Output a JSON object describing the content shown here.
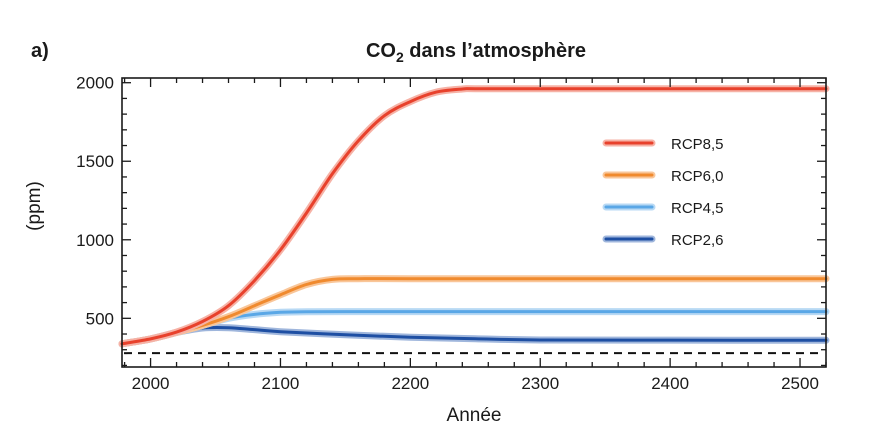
{
  "chart_data": {
    "type": "line",
    "panel_label": "a)",
    "title": "CO₂ dans l’atmosphère",
    "title_main": "CO",
    "title_sub": "2",
    "title_rest": " dans l’atmosphère",
    "xlabel": "Année",
    "ylabel": "(ppm)",
    "xlim": [
      1978,
      2520
    ],
    "ylim": [
      190,
      2030
    ],
    "x_ticks": [
      2000,
      2100,
      2200,
      2300,
      2400,
      2500
    ],
    "y_ticks": [
      500,
      1000,
      1500,
      2000
    ],
    "grid": false,
    "legend_position": "right",
    "baseline": {
      "value": 278,
      "style": "dashed"
    },
    "series": [
      {
        "name": "RCP8,5",
        "color": "#e8412c",
        "halo": "#f6b2a6",
        "points": [
          [
            1978,
            338
          ],
          [
            2000,
            369
          ],
          [
            2020,
            412
          ],
          [
            2040,
            480
          ],
          [
            2060,
            580
          ],
          [
            2080,
            740
          ],
          [
            2100,
            936
          ],
          [
            2120,
            1170
          ],
          [
            2140,
            1420
          ],
          [
            2160,
            1630
          ],
          [
            2180,
            1790
          ],
          [
            2200,
            1880
          ],
          [
            2220,
            1940
          ],
          [
            2240,
            1960
          ],
          [
            2250,
            1962
          ],
          [
            2300,
            1962
          ],
          [
            2400,
            1962
          ],
          [
            2520,
            1962
          ]
        ]
      },
      {
        "name": "RCP6,0",
        "color": "#f08a2e",
        "halo": "#f9c699",
        "points": [
          [
            1978,
            338
          ],
          [
            2000,
            369
          ],
          [
            2020,
            410
          ],
          [
            2040,
            455
          ],
          [
            2060,
            510
          ],
          [
            2080,
            580
          ],
          [
            2100,
            650
          ],
          [
            2120,
            715
          ],
          [
            2140,
            748
          ],
          [
            2160,
            752
          ],
          [
            2200,
            752
          ],
          [
            2300,
            752
          ],
          [
            2400,
            752
          ],
          [
            2520,
            752
          ]
        ]
      },
      {
        "name": "RCP4,5",
        "color": "#5aa7e6",
        "halo": "#b8d9f4",
        "points": [
          [
            1978,
            338
          ],
          [
            2000,
            369
          ],
          [
            2020,
            410
          ],
          [
            2040,
            455
          ],
          [
            2060,
            500
          ],
          [
            2080,
            525
          ],
          [
            2100,
            538
          ],
          [
            2120,
            542
          ],
          [
            2150,
            543
          ],
          [
            2200,
            543
          ],
          [
            2300,
            543
          ],
          [
            2400,
            543
          ],
          [
            2520,
            543
          ]
        ]
      },
      {
        "name": "RCP2,6",
        "color": "#1e4fa3",
        "halo": "#9fb6dc",
        "points": [
          [
            1978,
            338
          ],
          [
            2000,
            369
          ],
          [
            2020,
            410
          ],
          [
            2040,
            438
          ],
          [
            2060,
            440
          ],
          [
            2080,
            428
          ],
          [
            2100,
            415
          ],
          [
            2150,
            395
          ],
          [
            2200,
            380
          ],
          [
            2250,
            370
          ],
          [
            2300,
            362
          ],
          [
            2400,
            361
          ],
          [
            2520,
            360
          ]
        ]
      }
    ]
  }
}
